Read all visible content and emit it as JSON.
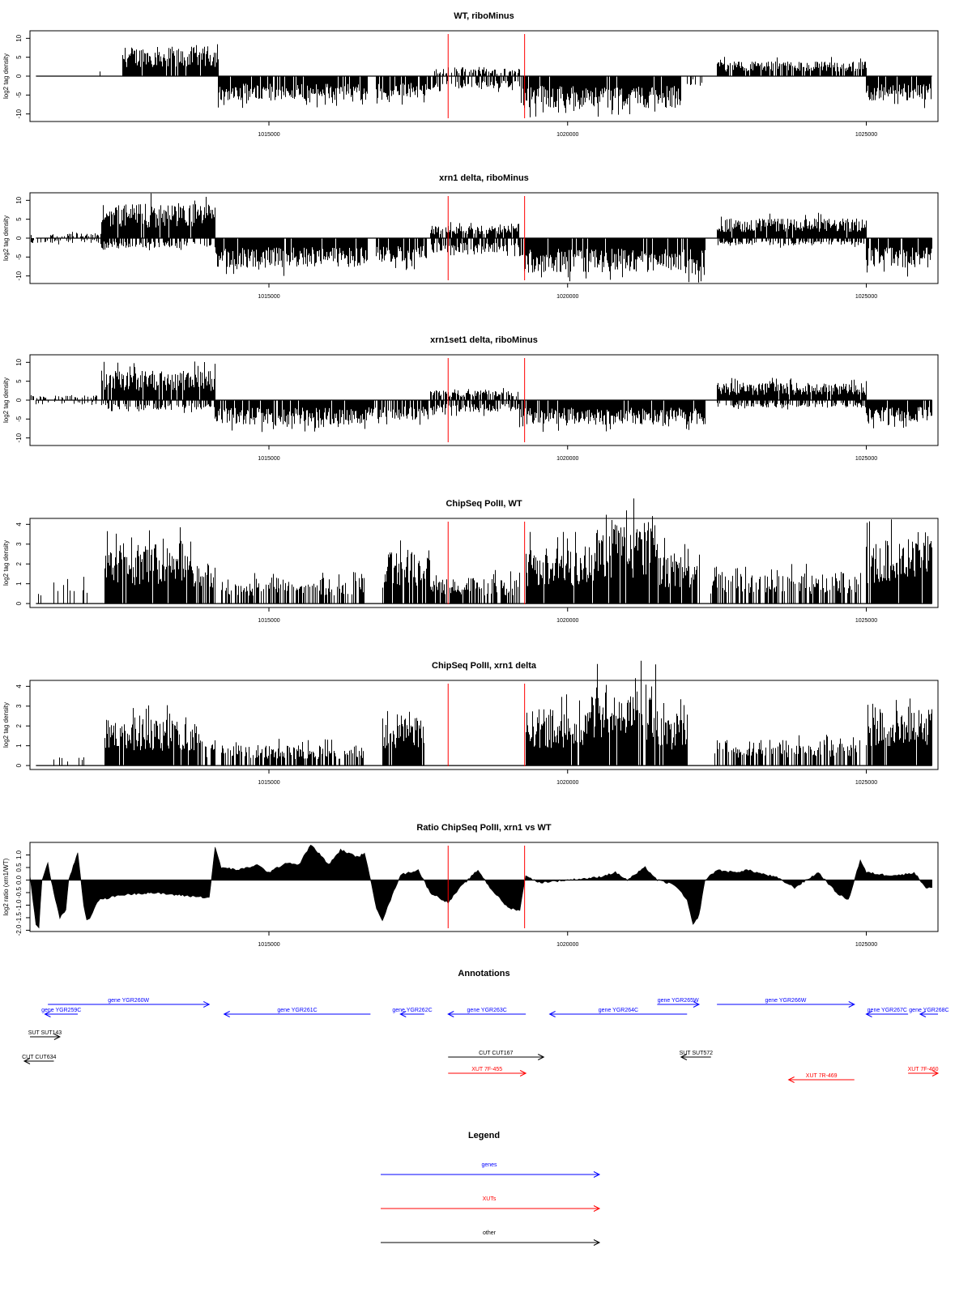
{
  "chart_data": [
    {
      "type": "bar",
      "title": "WT, riboMinus",
      "xlabel": "",
      "ylabel": "log2 tag density",
      "xlim": [
        1011000,
        1026200
      ],
      "ylim": [
        -12,
        12
      ],
      "xticks": [
        1015000,
        1020000,
        1025000
      ],
      "xtick_labels": [
        "1015000",
        "1020000",
        "1025000"
      ],
      "yticks": [
        -10,
        -5,
        0,
        5,
        10
      ],
      "ytick_labels": [
        "-10",
        "-5",
        "0",
        "5",
        "10"
      ],
      "grid": false,
      "marker_lines": [
        1018000,
        1019280
      ],
      "marker_color": "#ff0000",
      "bar_color": "#000000",
      "regions": [
        {
          "start": 1011900,
          "end": 1012500,
          "sign": 1,
          "level": 1.5,
          "density": 0.15
        },
        {
          "start": 1012550,
          "end": 1014150,
          "sign": 1,
          "level": 6,
          "density": 0.9
        },
        {
          "start": 1014150,
          "end": 1016650,
          "sign": -1,
          "level": 5,
          "density": 0.9
        },
        {
          "start": 1016800,
          "end": 1017700,
          "sign": -1,
          "level": 4.5,
          "density": 0.9
        },
        {
          "start": 1017750,
          "end": 1019200,
          "sign": 1,
          "level": 1.5,
          "density": 0.5
        },
        {
          "start": 1017750,
          "end": 1019200,
          "sign": -1,
          "level": 2.5,
          "density": 0.6
        },
        {
          "start": 1019200,
          "end": 1021900,
          "sign": -1,
          "level": 6.5,
          "density": 0.95
        },
        {
          "start": 1021900,
          "end": 1022300,
          "sign": -1,
          "level": 2,
          "density": 0.3
        },
        {
          "start": 1022500,
          "end": 1025000,
          "sign": 1,
          "level": 3,
          "density": 0.9
        },
        {
          "start": 1025000,
          "end": 1026100,
          "sign": -1,
          "level": 5,
          "density": 0.9
        }
      ]
    },
    {
      "type": "bar",
      "title": "xrn1 delta, riboMinus",
      "xlabel": "",
      "ylabel": "log2 tag density",
      "xlim": [
        1011000,
        1026200
      ],
      "ylim": [
        -12,
        12
      ],
      "xticks": [
        1015000,
        1020000,
        1025000
      ],
      "xtick_labels": [
        "1015000",
        "1020000",
        "1025000"
      ],
      "yticks": [
        -10,
        -5,
        0,
        5,
        10
      ],
      "ytick_labels": [
        "-10",
        "-5",
        "0",
        "5",
        "10"
      ],
      "grid": false,
      "marker_lines": [
        1018000,
        1019280
      ],
      "marker_color": "#ff0000",
      "bar_color": "#000000",
      "regions": [
        {
          "start": 1011000,
          "end": 1012200,
          "sign": 1,
          "level": 1,
          "density": 0.3
        },
        {
          "start": 1011000,
          "end": 1012200,
          "sign": -1,
          "level": 1,
          "density": 0.3
        },
        {
          "start": 1012200,
          "end": 1014100,
          "sign": 1,
          "level": 7,
          "density": 0.95
        },
        {
          "start": 1012200,
          "end": 1014100,
          "sign": -1,
          "level": 2,
          "density": 0.5
        },
        {
          "start": 1014100,
          "end": 1016650,
          "sign": -1,
          "level": 6,
          "density": 0.95
        },
        {
          "start": 1016800,
          "end": 1017650,
          "sign": -1,
          "level": 5,
          "density": 0.9
        },
        {
          "start": 1017700,
          "end": 1019200,
          "sign": 1,
          "level": 2.5,
          "density": 0.8
        },
        {
          "start": 1017700,
          "end": 1019200,
          "sign": -1,
          "level": 3,
          "density": 0.7
        },
        {
          "start": 1019200,
          "end": 1022300,
          "sign": -1,
          "level": 7,
          "density": 0.95
        },
        {
          "start": 1022500,
          "end": 1025000,
          "sign": 1,
          "level": 4,
          "density": 0.95
        },
        {
          "start": 1022500,
          "end": 1025000,
          "sign": -1,
          "level": 1.5,
          "density": 0.5
        },
        {
          "start": 1025000,
          "end": 1026100,
          "sign": -1,
          "level": 6,
          "density": 0.95
        }
      ]
    },
    {
      "type": "bar",
      "title": "xrn1set1 delta, riboMinus",
      "xlabel": "",
      "ylabel": "log2 tag density",
      "xlim": [
        1011000,
        1026200
      ],
      "ylim": [
        -12,
        12
      ],
      "xticks": [
        1015000,
        1020000,
        1025000
      ],
      "xtick_labels": [
        "1015000",
        "1020000",
        "1025000"
      ],
      "yticks": [
        -10,
        -5,
        0,
        5,
        10
      ],
      "ytick_labels": [
        "-10",
        "-5",
        "0",
        "5",
        "10"
      ],
      "grid": false,
      "marker_lines": [
        1018000,
        1019280
      ],
      "marker_color": "#ff0000",
      "bar_color": "#000000",
      "regions": [
        {
          "start": 1011000,
          "end": 1012200,
          "sign": 1,
          "level": 1,
          "density": 0.3
        },
        {
          "start": 1011000,
          "end": 1012200,
          "sign": -1,
          "level": 1,
          "density": 0.3
        },
        {
          "start": 1012200,
          "end": 1014100,
          "sign": 1,
          "level": 6,
          "density": 0.95
        },
        {
          "start": 1012200,
          "end": 1014100,
          "sign": -1,
          "level": 2,
          "density": 0.5
        },
        {
          "start": 1014100,
          "end": 1016650,
          "sign": -1,
          "level": 5,
          "density": 0.9
        },
        {
          "start": 1016650,
          "end": 1017700,
          "sign": -1,
          "level": 4,
          "density": 0.7
        },
        {
          "start": 1017700,
          "end": 1019200,
          "sign": 1,
          "level": 2,
          "density": 0.7
        },
        {
          "start": 1017700,
          "end": 1019200,
          "sign": -1,
          "level": 2.5,
          "density": 0.7
        },
        {
          "start": 1019200,
          "end": 1022300,
          "sign": -1,
          "level": 5,
          "density": 0.95
        },
        {
          "start": 1022500,
          "end": 1025000,
          "sign": 1,
          "level": 3.5,
          "density": 0.95
        },
        {
          "start": 1022500,
          "end": 1025000,
          "sign": -1,
          "level": 1.5,
          "density": 0.5
        },
        {
          "start": 1025000,
          "end": 1026100,
          "sign": -1,
          "level": 4.5,
          "density": 0.9
        }
      ]
    },
    {
      "type": "bar",
      "title": "ChipSeq PolII, WT",
      "xlabel": "",
      "ylabel": "log2 tag density",
      "xlim": [
        1011000,
        1026200
      ],
      "ylim": [
        -0.2,
        4.3
      ],
      "xticks": [
        1015000,
        1020000,
        1025000
      ],
      "xtick_labels": [
        "1015000",
        "1020000",
        "1025000"
      ],
      "yticks": [
        0,
        1,
        2,
        3,
        4
      ],
      "ytick_labels": [
        "0",
        "1",
        "2",
        "3",
        "4"
      ],
      "grid": false,
      "marker_lines": [
        1018000,
        1019280
      ],
      "marker_color": "#ff0000",
      "bar_color": "#000000",
      "regions": [
        {
          "start": 1011100,
          "end": 1012000,
          "sign": 1,
          "level": 1,
          "density": 0.15
        },
        {
          "start": 1012250,
          "end": 1013700,
          "sign": 1,
          "level": 2.3,
          "density": 0.95
        },
        {
          "start": 1013700,
          "end": 1014100,
          "sign": 1,
          "level": 1.5,
          "density": 0.7
        },
        {
          "start": 1014200,
          "end": 1016600,
          "sign": 1,
          "level": 1,
          "density": 0.6
        },
        {
          "start": 1016900,
          "end": 1017700,
          "sign": 1,
          "level": 2,
          "density": 0.9
        },
        {
          "start": 1017700,
          "end": 1019200,
          "sign": 1,
          "level": 1,
          "density": 0.7
        },
        {
          "start": 1019300,
          "end": 1020500,
          "sign": 1,
          "level": 2.2,
          "density": 0.95
        },
        {
          "start": 1020500,
          "end": 1021500,
          "sign": 1,
          "level": 3.2,
          "density": 0.95
        },
        {
          "start": 1021500,
          "end": 1022200,
          "sign": 1,
          "level": 2,
          "density": 0.9
        },
        {
          "start": 1022400,
          "end": 1024900,
          "sign": 1,
          "level": 1.2,
          "density": 0.6
        },
        {
          "start": 1025000,
          "end": 1026100,
          "sign": 1,
          "level": 2.5,
          "density": 0.95
        }
      ]
    },
    {
      "type": "bar",
      "title": "ChipSeq PolII, xrn1 delta",
      "xlabel": "",
      "ylabel": "log2 tag density",
      "xlim": [
        1011000,
        1026200
      ],
      "ylim": [
        -0.2,
        4.3
      ],
      "xticks": [
        1015000,
        1020000,
        1025000
      ],
      "xtick_labels": [
        "1015000",
        "1020000",
        "1025000"
      ],
      "yticks": [
        0,
        1,
        2,
        3,
        4
      ],
      "ytick_labels": [
        "0",
        "1",
        "2",
        "3",
        "4"
      ],
      "grid": false,
      "marker_lines": [
        1018000,
        1019280
      ],
      "marker_color": "#ff0000",
      "bar_color": "#000000",
      "regions": [
        {
          "start": 1011200,
          "end": 1012000,
          "sign": 1,
          "level": 0.4,
          "density": 0.1
        },
        {
          "start": 1012250,
          "end": 1013800,
          "sign": 1,
          "level": 1.8,
          "density": 0.95
        },
        {
          "start": 1013800,
          "end": 1014100,
          "sign": 1,
          "level": 1,
          "density": 0.6
        },
        {
          "start": 1014200,
          "end": 1016600,
          "sign": 1,
          "level": 0.8,
          "density": 0.6
        },
        {
          "start": 1016900,
          "end": 1017600,
          "sign": 1,
          "level": 2,
          "density": 0.95
        },
        {
          "start": 1019300,
          "end": 1020400,
          "sign": 1,
          "level": 2.2,
          "density": 0.95
        },
        {
          "start": 1020400,
          "end": 1021500,
          "sign": 1,
          "level": 3.2,
          "density": 0.95
        },
        {
          "start": 1021500,
          "end": 1022000,
          "sign": 1,
          "level": 2,
          "density": 0.9
        },
        {
          "start": 1022400,
          "end": 1024900,
          "sign": 1,
          "level": 1,
          "density": 0.6
        },
        {
          "start": 1025000,
          "end": 1026100,
          "sign": 1,
          "level": 2.4,
          "density": 0.95
        }
      ]
    },
    {
      "type": "area",
      "title": "Ratio ChipSeq PolII, xrn1 vs WT",
      "xlabel": "",
      "ylabel": "log2 ratio (xrn1/WT)",
      "xlim": [
        1011000,
        1026200
      ],
      "ylim": [
        -2.05,
        1.5
      ],
      "xticks": [
        1015000,
        1020000,
        1025000
      ],
      "xtick_labels": [
        "1015000",
        "1020000",
        "1025000"
      ],
      "yticks": [
        -2.0,
        -1.5,
        -1.0,
        -0.5,
        0.0,
        0.5,
        1.0
      ],
      "ytick_labels": [
        "-2.0",
        "-1.5",
        "-1.0",
        "-0.5",
        "0.0",
        "0.5",
        "1.0"
      ],
      "grid": false,
      "marker_lines": [
        1018000,
        1019280
      ],
      "marker_color": "#ff0000",
      "x": [
        1011000,
        1011100,
        1011150,
        1011200,
        1011300,
        1011350,
        1011500,
        1011600,
        1011650,
        1011800,
        1011900,
        1011950,
        1012000,
        1012150,
        1012500,
        1013000,
        1013500,
        1014000,
        1014100,
        1014200,
        1014500,
        1014800,
        1015000,
        1015300,
        1015500,
        1015700,
        1015900,
        1016000,
        1016200,
        1016500,
        1016600,
        1016800,
        1016900,
        1017200,
        1017500,
        1017700,
        1018000,
        1018200,
        1018500,
        1018700,
        1019000,
        1019200,
        1019300,
        1019500,
        1020000,
        1020500,
        1020800,
        1021000,
        1021300,
        1021500,
        1021800,
        1022000,
        1022100,
        1022200,
        1022300,
        1022500,
        1022800,
        1023000,
        1023500,
        1023800,
        1024200,
        1024500,
        1024700,
        1024900,
        1025000,
        1025300,
        1025600,
        1025800,
        1026000,
        1026100
      ],
      "y": [
        0.2,
        -1.8,
        -1.9,
        0.0,
        0.7,
        0.0,
        -1.5,
        -1.2,
        0.0,
        1.1,
        -1.0,
        -1.6,
        -1.5,
        -0.8,
        -0.6,
        -0.5,
        -0.6,
        -0.7,
        1.3,
        0.5,
        0.4,
        0.6,
        0.3,
        0.7,
        0.6,
        1.4,
        0.9,
        0.6,
        1.2,
        0.9,
        1.1,
        -1.1,
        -1.6,
        0.2,
        0.4,
        -0.5,
        -0.9,
        -0.3,
        0.4,
        -0.3,
        -1.1,
        -1.2,
        0.2,
        -0.1,
        0.0,
        0.1,
        0.3,
        0.0,
        0.5,
        0.0,
        -0.2,
        -0.8,
        -1.8,
        -1.4,
        0.0,
        0.4,
        0.3,
        0.4,
        0.1,
        -0.3,
        0.3,
        -0.5,
        -0.8,
        0.8,
        0.3,
        0.2,
        0.2,
        0.3,
        -0.3,
        -0.3
      ]
    }
  ],
  "annotations": {
    "title": "Annotations",
    "xlim": [
      1011000,
      1026200
    ],
    "features": [
      {
        "label": "gene YGR260W",
        "start": 1011300,
        "end": 1014000,
        "strand": "+",
        "color": "#0000ff",
        "row": 1
      },
      {
        "label": "gene YGR259C",
        "start": 1011250,
        "end": 1011800,
        "strand": "-",
        "color": "#0000ff",
        "row": 2
      },
      {
        "label": "gene YGR261C",
        "start": 1014250,
        "end": 1016700,
        "strand": "-",
        "color": "#0000ff",
        "row": 2
      },
      {
        "label": "gene YGR262C",
        "start": 1017200,
        "end": 1017600,
        "strand": "-",
        "color": "#0000ff",
        "row": 2
      },
      {
        "label": "gene YGR263C",
        "start": 1018000,
        "end": 1019300,
        "strand": "-",
        "color": "#0000ff",
        "row": 2
      },
      {
        "label": "gene YGR264C",
        "start": 1019700,
        "end": 1022000,
        "strand": "-",
        "color": "#0000ff",
        "row": 2
      },
      {
        "label": "gene YGR265W",
        "start": 1021500,
        "end": 1022200,
        "strand": "+",
        "color": "#0000ff",
        "row": 1
      },
      {
        "label": "gene YGR266W",
        "start": 1022500,
        "end": 1024800,
        "strand": "+",
        "color": "#0000ff",
        "row": 1
      },
      {
        "label": "gene YGR267C",
        "start": 1025000,
        "end": 1025700,
        "strand": "-",
        "color": "#0000ff",
        "row": 2
      },
      {
        "label": "gene YGR268C",
        "start": 1025900,
        "end": 1026200,
        "strand": "-",
        "color": "#0000ff",
        "row": 2
      },
      {
        "label": "SUT SUT143",
        "start": 1011000,
        "end": 1011500,
        "strand": "+",
        "color": "#000000",
        "row": 3
      },
      {
        "label": "CUT CUT634",
        "start": 1010700,
        "end": 1011400,
        "strand": "-",
        "color": "#000000",
        "row": 5
      },
      {
        "label": "CUT CUT167",
        "start": 1018000,
        "end": 1019600,
        "strand": "+",
        "color": "#000000",
        "row": 4
      },
      {
        "label": "SUT SUT572",
        "start": 1021900,
        "end": 1022400,
        "strand": "-",
        "color": "#000000",
        "row": 4
      },
      {
        "label": "XUT 7F-455",
        "start": 1018000,
        "end": 1019300,
        "strand": "+",
        "color": "#ff0000",
        "row": 6
      },
      {
        "label": "XUT 7R-469",
        "start": 1023700,
        "end": 1024800,
        "strand": "-",
        "color": "#ff0000",
        "row": 7
      },
      {
        "label": "XUT 7F-460",
        "start": 1025700,
        "end": 1026200,
        "strand": "+",
        "color": "#ff0000",
        "row": 6
      }
    ]
  },
  "legend": {
    "title": "Legend",
    "items": [
      {
        "label": "genes",
        "color": "#0000ff"
      },
      {
        "label": "XUTs",
        "color": "#ff0000"
      },
      {
        "label": "other",
        "color": "#000000"
      }
    ]
  }
}
